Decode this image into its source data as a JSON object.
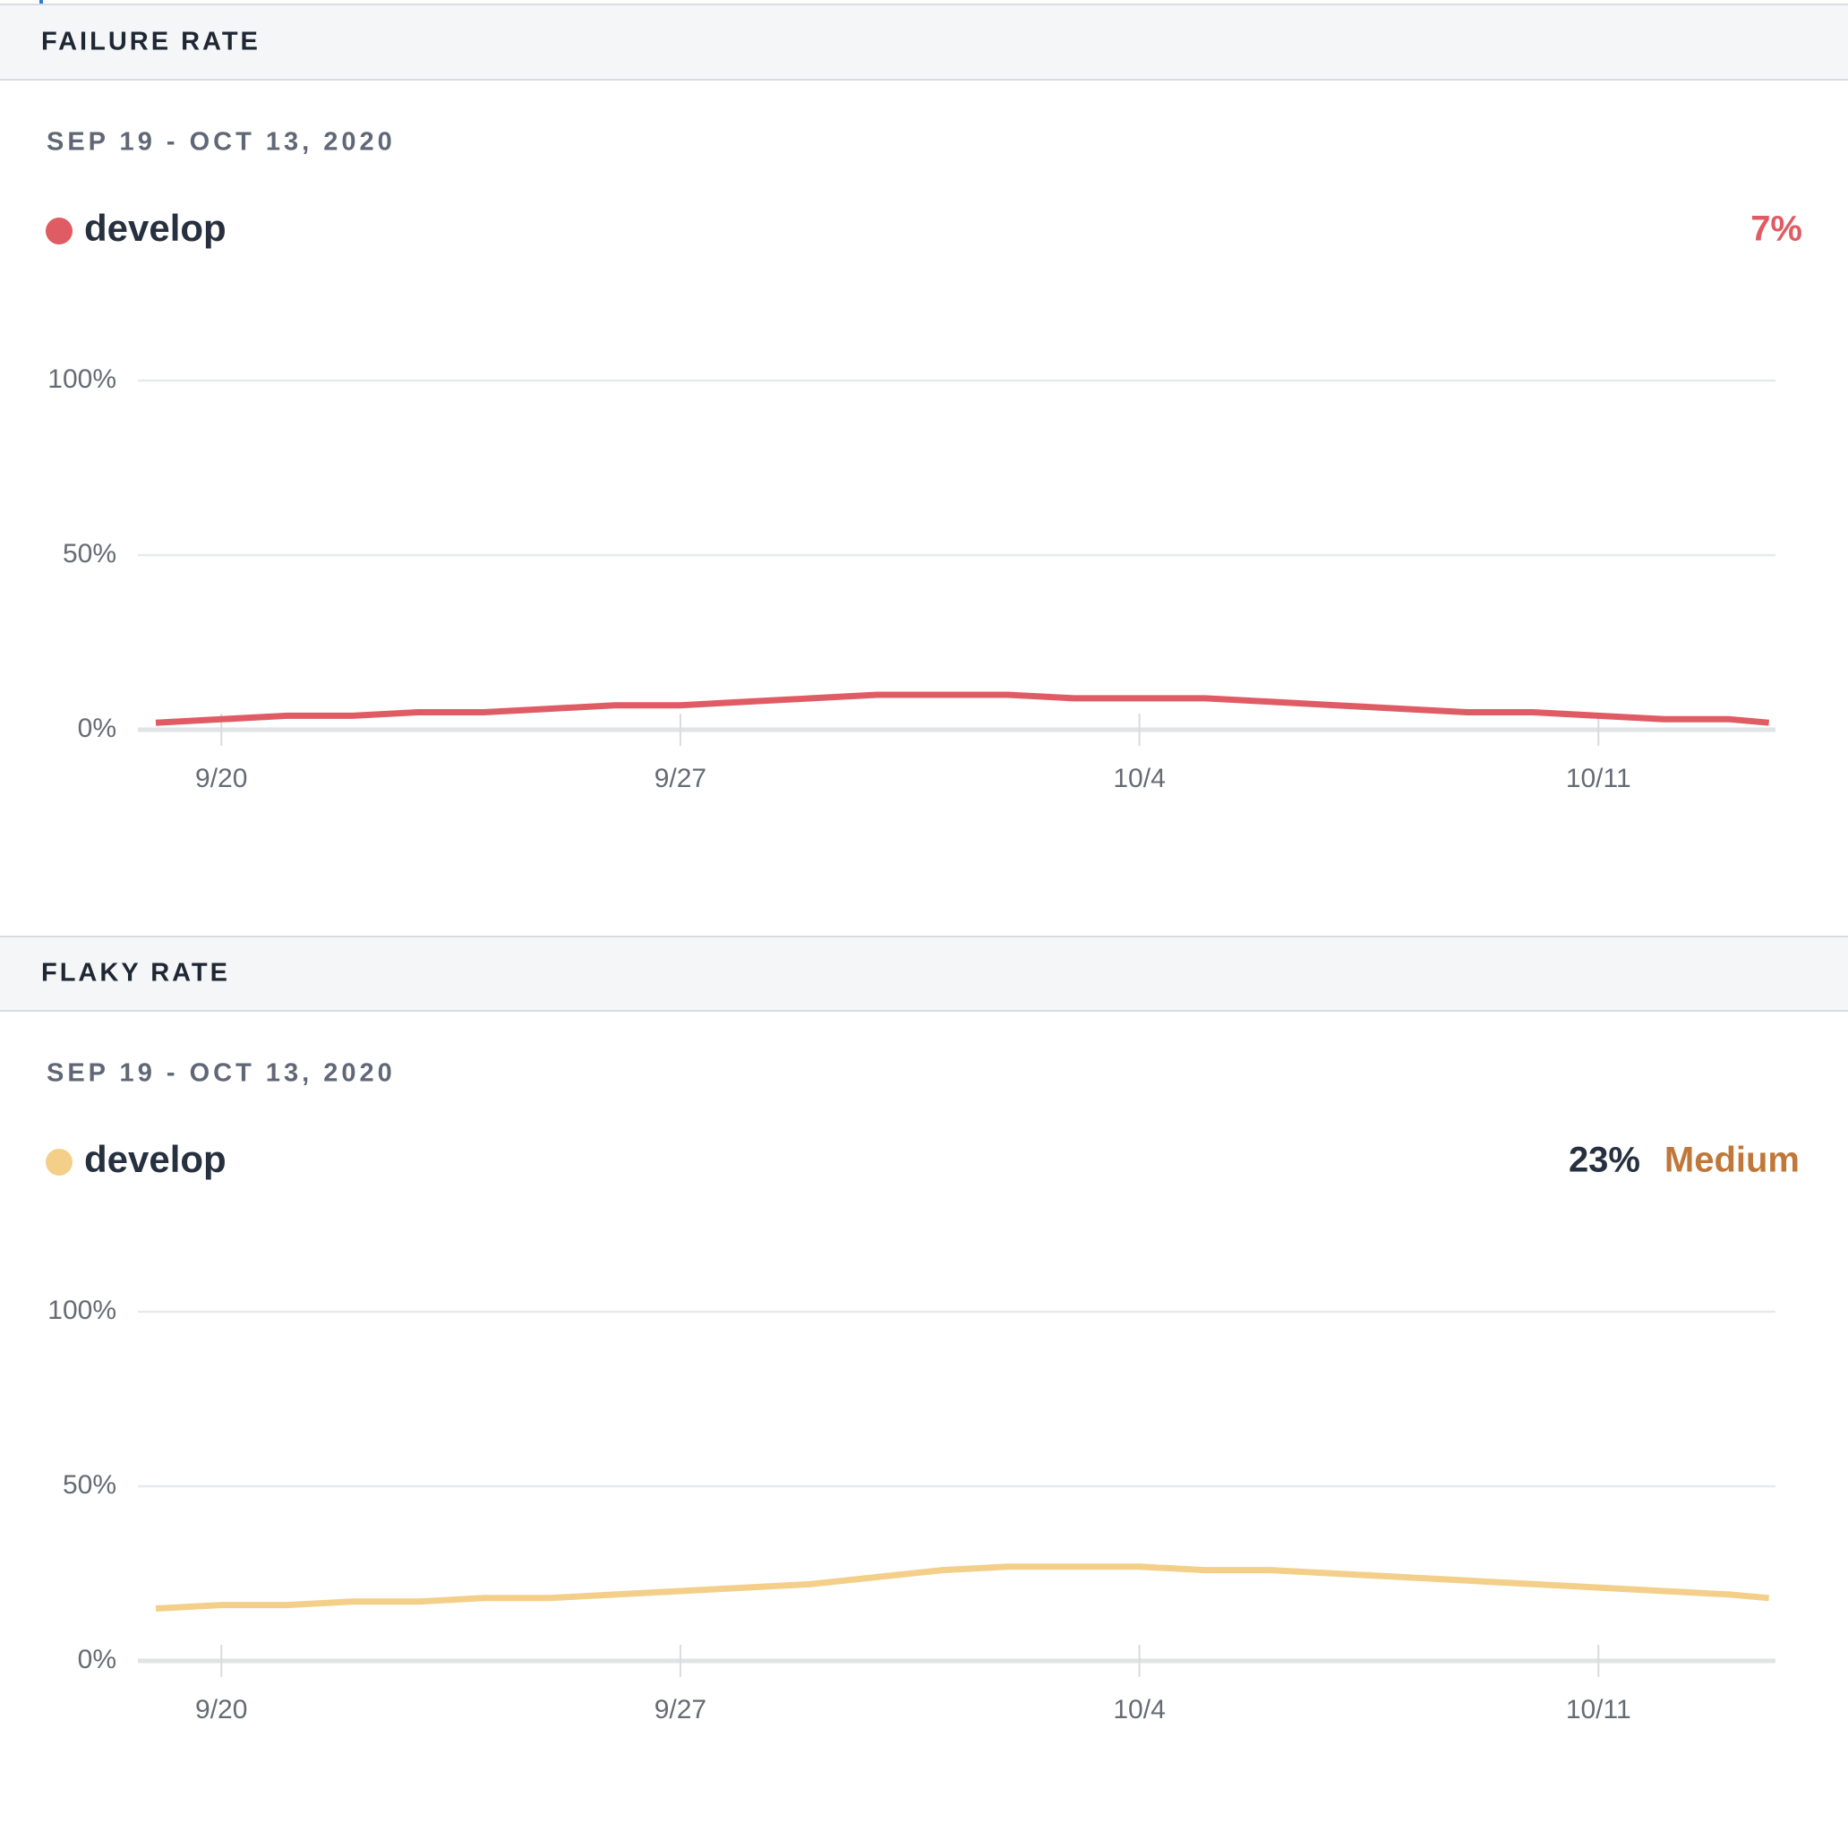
{
  "chart_data": [
    {
      "type": "line",
      "title": "FAILURE RATE",
      "subtitle": "SEP 19 - OCT 13, 2020",
      "x": [
        0,
        1,
        2,
        3,
        4,
        5,
        6,
        7,
        8,
        9,
        10,
        11,
        12,
        13,
        14,
        15,
        16,
        17,
        18,
        19,
        20,
        21,
        22,
        23,
        24,
        24.6
      ],
      "series": [
        {
          "name": "develop",
          "color": "#e05c65",
          "values": [
            2,
            3,
            4,
            4,
            5,
            5,
            6,
            7,
            7,
            8,
            9,
            10,
            10,
            10,
            9,
            9,
            9,
            8,
            7,
            6,
            5,
            5,
            4,
            3,
            3,
            2
          ]
        }
      ],
      "summary": {
        "value": 7,
        "label": "7%"
      },
      "summary_color": "#e05c65",
      "xlim": [
        0,
        24.7
      ],
      "xticks": [
        {
          "value": 1,
          "label": "9/20"
        },
        {
          "value": 8,
          "label": "9/27"
        },
        {
          "value": 15,
          "label": "10/4"
        },
        {
          "value": 22,
          "label": "10/11"
        }
      ],
      "ylim": [
        0,
        100
      ],
      "yticks": [
        {
          "value": 0,
          "label": "0%"
        },
        {
          "value": 50,
          "label": "50%"
        },
        {
          "value": 100,
          "label": "100%"
        }
      ],
      "grid": true
    },
    {
      "type": "line",
      "title": "FLAKY RATE",
      "subtitle": "SEP 19 - OCT 13, 2020",
      "x": [
        0,
        1,
        2,
        3,
        4,
        5,
        6,
        7,
        8,
        9,
        10,
        11,
        12,
        13,
        14,
        15,
        16,
        17,
        18,
        19,
        20,
        21,
        22,
        23,
        24,
        24.6
      ],
      "series": [
        {
          "name": "develop",
          "color": "#f4cf8a",
          "values": [
            15,
            16,
            16,
            17,
            17,
            18,
            18,
            19,
            20,
            21,
            22,
            24,
            26,
            27,
            27,
            27,
            26,
            26,
            25,
            24,
            23,
            22,
            21,
            20,
            19,
            18
          ]
        }
      ],
      "summary": {
        "value": 23,
        "label": "23%"
      },
      "summary_color": "#27303f",
      "rating": "Medium",
      "rating_color": "#c0783a",
      "xlim": [
        0,
        24.7
      ],
      "xticks": [
        {
          "value": 1,
          "label": "9/20"
        },
        {
          "value": 8,
          "label": "9/27"
        },
        {
          "value": 15,
          "label": "10/4"
        },
        {
          "value": 22,
          "label": "10/11"
        }
      ],
      "ylim": [
        0,
        100
      ],
      "yticks": [
        {
          "value": 0,
          "label": "0%"
        },
        {
          "value": 50,
          "label": "50%"
        },
        {
          "value": 100,
          "label": "100%"
        }
      ],
      "grid": true
    }
  ]
}
